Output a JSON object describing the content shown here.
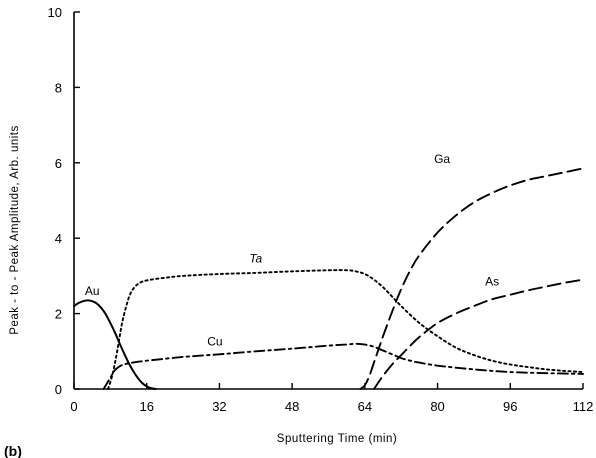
{
  "panel_label": "(b)",
  "chart_data": {
    "type": "line",
    "title": "",
    "xlabel": "Sputtering Time (min)",
    "ylabel": "Peak - to - Peak Amplitude, Arb. units",
    "xlim": [
      0,
      112
    ],
    "ylim": [
      0,
      10
    ],
    "xticks": [
      0,
      16,
      32,
      48,
      64,
      80,
      96,
      112
    ],
    "yticks": [
      0,
      2,
      4,
      6,
      8,
      10
    ],
    "grid": false,
    "legend": "none",
    "series": [
      {
        "name": "Au",
        "dash": "solid",
        "x": [
          0,
          1,
          2,
          3,
          4,
          5,
          6,
          7,
          8,
          9,
          10,
          11,
          12,
          13,
          14,
          15,
          16,
          17,
          18
        ],
        "y": [
          2.2,
          2.28,
          2.33,
          2.35,
          2.33,
          2.27,
          2.15,
          1.98,
          1.75,
          1.5,
          1.22,
          0.95,
          0.7,
          0.48,
          0.3,
          0.16,
          0.07,
          0.02,
          0.0
        ]
      },
      {
        "name": "Ta",
        "dash": "dotted",
        "x": [
          7.5,
          8.5,
          9.5,
          10.5,
          11.5,
          12.5,
          14,
          16,
          20,
          24,
          32,
          40,
          48,
          56,
          60,
          62,
          64,
          66,
          68,
          70,
          72,
          76,
          80,
          84,
          88,
          92,
          96,
          100,
          104,
          108,
          112
        ],
        "y": [
          0.0,
          0.4,
          1.0,
          1.7,
          2.2,
          2.55,
          2.78,
          2.88,
          2.95,
          3.0,
          3.05,
          3.08,
          3.12,
          3.15,
          3.15,
          3.12,
          3.05,
          2.9,
          2.7,
          2.45,
          2.2,
          1.75,
          1.4,
          1.1,
          0.9,
          0.75,
          0.65,
          0.58,
          0.52,
          0.48,
          0.45
        ]
      },
      {
        "name": "Cu",
        "dash": "dashdot",
        "x": [
          6.5,
          8,
          9,
          10,
          11,
          12,
          14,
          16,
          24,
          32,
          40,
          48,
          56,
          60,
          62,
          64,
          66,
          68,
          70,
          72,
          74,
          76,
          80,
          88,
          96,
          104,
          112
        ],
        "y": [
          0.0,
          0.3,
          0.5,
          0.6,
          0.65,
          0.68,
          0.72,
          0.75,
          0.85,
          0.92,
          1.0,
          1.07,
          1.15,
          1.18,
          1.2,
          1.18,
          1.12,
          1.02,
          0.92,
          0.82,
          0.75,
          0.7,
          0.62,
          0.52,
          0.45,
          0.42,
          0.4
        ]
      },
      {
        "name": "Ga",
        "dash": "longdash",
        "x": [
          63,
          64,
          65,
          66,
          67,
          68,
          70,
          72,
          74,
          76,
          80,
          84,
          88,
          92,
          96,
          100,
          104,
          108,
          112
        ],
        "y": [
          0.0,
          0.1,
          0.35,
          0.7,
          1.05,
          1.4,
          2.05,
          2.65,
          3.15,
          3.55,
          4.15,
          4.6,
          4.95,
          5.2,
          5.4,
          5.55,
          5.65,
          5.75,
          5.85
        ]
      },
      {
        "name": "As",
        "dash": "longdash",
        "x": [
          66,
          68,
          70,
          72,
          74,
          76,
          80,
          84,
          88,
          92,
          96,
          100,
          104,
          108,
          112
        ],
        "y": [
          0.0,
          0.35,
          0.65,
          0.9,
          1.15,
          1.38,
          1.75,
          2.0,
          2.2,
          2.38,
          2.5,
          2.62,
          2.72,
          2.82,
          2.9
        ]
      }
    ],
    "annotations": [
      {
        "text": "Au",
        "x": 4,
        "y": 2.5
      },
      {
        "text": "Ta",
        "x": 40,
        "y": 3.35
      },
      {
        "text": "Cu",
        "x": 31,
        "y": 1.15
      },
      {
        "text": "Ga",
        "x": 81,
        "y": 6.0
      },
      {
        "text": "As",
        "x": 92,
        "y": 2.75
      }
    ]
  }
}
